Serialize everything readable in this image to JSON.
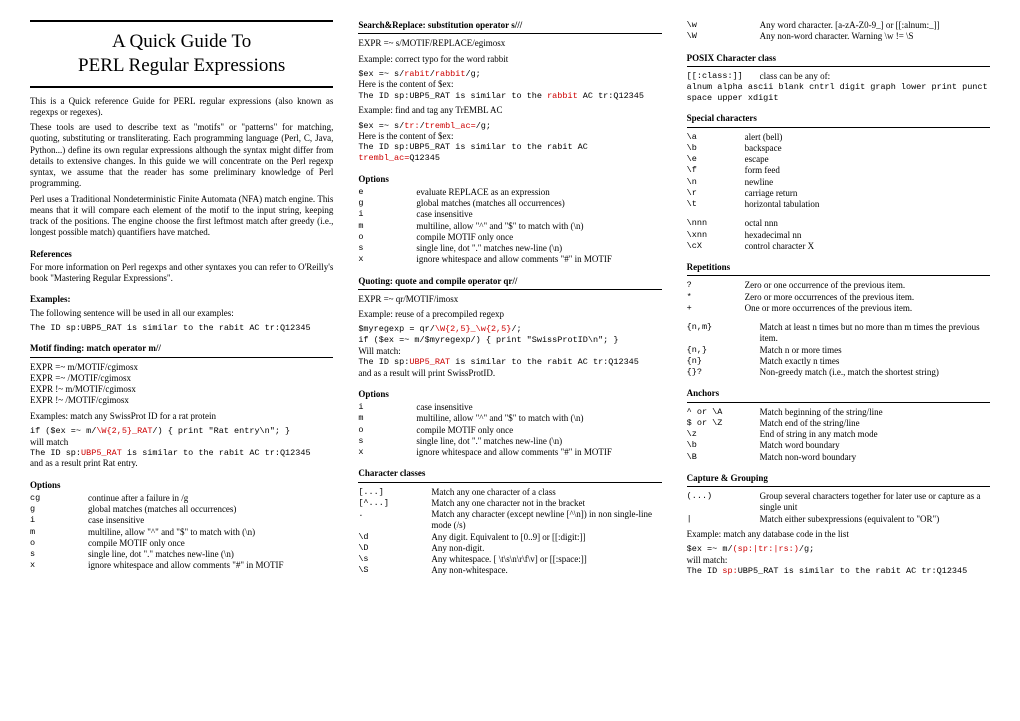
{
  "title": {
    "line1": "A Quick Guide To",
    "line2": "PERL Regular Expressions"
  },
  "intro": {
    "p1": "This is a Quick reference Guide for PERL regular expressions (also known as regexps or regexes).",
    "p2": "These tools are used to describe text as \"motifs\" or \"patterns\" for matching, quoting, substituting or transliterating. Each programming language (Perl, C, Java, Python...) define its own regular expressions although the syntax might differ from details to extensive changes. In this guide we will concentrate on the Perl regexp syntax, we assume that the reader has some preliminary knowledge of Perl programming.",
    "p3": "Perl uses a Traditional Nondeterministic Finite Automata (NFA) match engine. This means that it will compare each element of the motif to the input string, keeping track of the positions. The engine choose the first leftmost match after greedy (i.e., longest possible match) quantifiers have matched."
  },
  "references": {
    "head": "References",
    "text": "For more information on Perl regexps and other syntaxes you can refer to O'Reilly's book \"Mastering Regular Expressions\"."
  },
  "examples": {
    "head": "Examples:",
    "text": "The following sentence will be used in all our examples:",
    "code": "The ID sp:UBP5_RAT is similar to the rabit AC tr:Q12345"
  },
  "motif": {
    "head": "Motif finding:  match operator m//",
    "l1": "EXPR =~ m/MOTIF/cgimosx",
    "l2": "EXPR =~ /MOTIF/cgimosx",
    "l3": "EXPR !~ m/MOTIF/cgimosx",
    "l4": "EXPR !~ /MOTIF/cgimosx",
    "ex_intro": "Examples: match any SwissProt ID for a rat protein",
    "ex_code1a": "if ($ex =~ m/",
    "ex_code1b": "\\W{2,5}_RAT",
    "ex_code1c": "/) { print \"Rat entry\\n\"; }",
    "ex_text1": "will match",
    "ex_code2a": "The ID sp:",
    "ex_code2b": "UBP5_RAT",
    "ex_code2c": " is similar to the rabit AC tr:Q12345",
    "ex_text2": "and as a result print Rat entry.",
    "opts_head": "Options",
    "opts": [
      {
        "k": "cg",
        "v": "continue after a failure in  /g"
      },
      {
        "k": "g",
        "v": "global matches (matches all occurrences)"
      },
      {
        "k": "i",
        "v": "case insensitive"
      },
      {
        "k": "m",
        "v": "multiline, allow \"^\" and \"$\" to match with (\\n)"
      },
      {
        "k": "o",
        "v": "compile MOTIF only once"
      },
      {
        "k": "s",
        "v": "single line, dot \".\" matches new-line (\\n)"
      },
      {
        "k": "x",
        "v": "ignore whitespace and allow comments \"#\" in MOTIF"
      }
    ]
  },
  "search": {
    "head": "Search&Replace: substitution operator s///",
    "l1": "EXPR =~ s/MOTIF/REPLACE/egimosx",
    "ex1_intro": "Example: correct typo for the word rabbit",
    "ex1_code_a": "$ex =~ s/",
    "ex1_code_b": "rabit",
    "ex1_code_c": "/",
    "ex1_code_d": "rabbit",
    "ex1_code_e": "/g;",
    "ex1_text": "Here is the content of $ex:",
    "ex1_res_a": "The ID sp:UBP5_RAT is similar to the ",
    "ex1_res_b": "rabbit",
    "ex1_res_c": " AC tr:Q12345",
    "ex2_intro": "Example: find and tag any TrEMBL AC",
    "ex2_code_a": "$ex =~ s/",
    "ex2_code_b": "tr:",
    "ex2_code_c": "/",
    "ex2_code_d": "trembl_ac=",
    "ex2_code_e": "/g;",
    "ex2_text": "Here is the content of $ex:",
    "ex2_res_a": "The ID sp:UBP5_RAT is similar to the rabit AC ",
    "ex2_res_b": "trembl_ac=",
    "ex2_res_c": "Q12345",
    "opts_head": "Options",
    "opts": [
      {
        "k": "e",
        "v": "evaluate REPLACE as an expression"
      },
      {
        "k": "g",
        "v": "global matches (matches all occurrences)"
      },
      {
        "k": "i",
        "v": "case insensitive"
      },
      {
        "k": "m",
        "v": "multiline, allow \"^\" and \"$\" to match with (\\n)"
      },
      {
        "k": "o",
        "v": "compile MOTIF only once"
      },
      {
        "k": "s",
        "v": "single line, dot \".\" matches new-line (\\n)"
      },
      {
        "k": "x",
        "v": "ignore whitespace and allow comments \"#\" in MOTIF"
      }
    ]
  },
  "quoting": {
    "head": "Quoting:  quote and compile operator qr//",
    "l1": "EXPR =~ qr/MOTIF/imosx",
    "ex_intro": "Example: reuse of a precompiled regexp",
    "ex_code1_a": "$myregexp = qr/",
    "ex_code1_b": "\\W{2,5}_\\w{2,5}",
    "ex_code1_c": "/;",
    "ex_code2": "if ($ex =~ m/$myregexp/) { print \"SwissProtID\\n\"; }",
    "ex_text1": "Will match:",
    "ex_res_a": "The ID sp:",
    "ex_res_b": "UBP5_RAT",
    "ex_res_c": " is similar to the rabit AC tr:Q12345",
    "ex_text2": "and as a result will print SwissProtID.",
    "opts_head": "Options",
    "opts": [
      {
        "k": "i",
        "v": "case insensitive"
      },
      {
        "k": "m",
        "v": "multiline, allow \"^\" and \"$\" to match with (\\n)"
      },
      {
        "k": "o",
        "v": "compile MOTIF only once"
      },
      {
        "k": "s",
        "v": "single line, dot \".\" matches new-line (\\n)"
      },
      {
        "k": "x",
        "v": "ignore whitespace and allow comments \"#\" in MOTIF"
      }
    ]
  },
  "charclass": {
    "head": "Character classes",
    "opts": [
      {
        "k": "[...]",
        "v": "Match any one character of a class"
      },
      {
        "k": "[^...]",
        "v": "Match any one character not in the bracket"
      },
      {
        "k": ".",
        "v": "Match any character (except newline [^\\n]) in non single-line mode (/s)"
      },
      {
        "k": "\\d",
        "v": "Any digit. Equivalent to [0..9] or [[:digit:]]"
      },
      {
        "k": "\\D",
        "v": "Any non-digit."
      },
      {
        "k": "\\s",
        "v": "Any whitespace. [ \\t\\s\\n\\r\\f\\v] or [[:space:]]"
      },
      {
        "k": "\\S",
        "v": "Any non-whitespace."
      },
      {
        "k": "\\w",
        "v": "Any word character. [a-zA-Z0-9_] or [[:alnum:_]]"
      },
      {
        "k": "\\W",
        "v": "Any non-word character. Warning \\w != \\S"
      }
    ]
  },
  "posix": {
    "head": "POSIX Character class",
    "l1a": "[[:class:]]",
    "l1b": "class can be any of:",
    "l2": "alnum alpha ascii blank cntrl digit graph lower print punct space upper xdigit"
  },
  "special": {
    "head": "Special characters",
    "opts_a": [
      {
        "k": "\\a",
        "v": "alert (bell)"
      },
      {
        "k": "\\b",
        "v": "backspace"
      },
      {
        "k": "\\e",
        "v": "escape"
      },
      {
        "k": "\\f",
        "v": "form feed"
      },
      {
        "k": "\\n",
        "v": "newline"
      },
      {
        "k": "\\r",
        "v": "carriage return"
      },
      {
        "k": "\\t",
        "v": "horizontal tabulation"
      }
    ],
    "opts_b": [
      {
        "k": "\\nnn",
        "v": "octal  nnn",
        "it": true
      },
      {
        "k": "\\xnn",
        "v": "hexadecimal  nn",
        "it": true
      },
      {
        "k": "\\cX",
        "v": "control character  X",
        "it": true
      }
    ]
  },
  "repetitions": {
    "head": "Repetitions",
    "opts_a": [
      {
        "k": "?",
        "v": "Zero or one occurrence of the previous item."
      },
      {
        "k": "*",
        "v": "Zero or more occurrences of the previous item."
      },
      {
        "k": "+",
        "v": "One or more occurrences of the previous item."
      }
    ],
    "opts_b": [
      {
        "k": "{n,m}",
        "v": "Match at least n times but no more than m times the previous item."
      },
      {
        "k": "{n,}",
        "v": "Match n or more times"
      },
      {
        "k": "{n}",
        "v": "Match exactly n times"
      },
      {
        "k": "{}?",
        "v": "Non-greedy match (i.e., match the shortest string)"
      }
    ]
  },
  "anchors": {
    "head": "Anchors",
    "opts": [
      {
        "k": "^ or \\A",
        "v": "Match beginning of the string/line"
      },
      {
        "k": "$ or \\Z",
        "v": "Match end of the string/line"
      },
      {
        "k": "\\z",
        "v": "End of string in any match mode"
      },
      {
        "k": "\\b",
        "v": "Match word boundary"
      },
      {
        "k": "\\B",
        "v": "Match non-word boundary"
      }
    ]
  },
  "capture": {
    "head": "Capture & Grouping",
    "opts": [
      {
        "k": "(...)",
        "v": "Group several characters together for later use or capture as a single unit"
      },
      {
        "k": "|",
        "v": "Match either subexpressions (equivalent to \"OR\")"
      }
    ],
    "ex_intro": "Example: match any database code in the list",
    "ex_code_a": "$ex =~ m/",
    "ex_code_b": "(sp:|tr:|rs:)",
    "ex_code_c": "/g;",
    "ex_text": "will match:",
    "ex_res_a": "The ID ",
    "ex_res_b": "sp:",
    "ex_res_c": "UBP5_RAT is similar to the rabit AC tr:Q12345"
  }
}
